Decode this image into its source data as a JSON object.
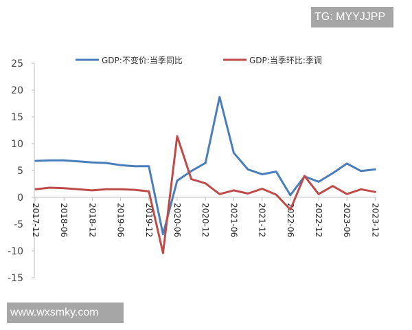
{
  "watermarks": {
    "top_right": "TG: MYYJJPP",
    "bottom_left": "www.wxsmky.com"
  },
  "colors": {
    "series_yoy": "#4a7ebb",
    "series_qoq": "#be4b48",
    "axis": "#bfbfbf",
    "watermark_bg": "#a6a6a6"
  },
  "chart_data": {
    "type": "line",
    "title": "",
    "xlabel": "",
    "ylabel": "",
    "ylim": [
      -15,
      25
    ],
    "yticks": [
      25,
      20,
      15,
      10,
      5,
      0,
      -5,
      -10,
      -15
    ],
    "grid": false,
    "legend_position": "top",
    "x": [
      "2017-12",
      "2018-03",
      "2018-06",
      "2018-09",
      "2018-12",
      "2019-03",
      "2019-06",
      "2019-09",
      "2019-12",
      "2020-03",
      "2020-06",
      "2020-09",
      "2020-12",
      "2021-03",
      "2021-06",
      "2021-09",
      "2021-12",
      "2022-03",
      "2022-06",
      "2022-09",
      "2022-12",
      "2023-03",
      "2023-06",
      "2023-09",
      "2023-12"
    ],
    "xtick_labels": [
      "2017-12",
      "2018-06",
      "2018-12",
      "2019-06",
      "2019-12",
      "2020-06",
      "2020-12",
      "2021-06",
      "2021-12",
      "2022-06",
      "2022-12",
      "2023-06",
      "2023-12"
    ],
    "series": [
      {
        "name": "GDP:不变价:当季同比",
        "color": "#4a7ebb",
        "values": [
          6.8,
          6.9,
          6.9,
          6.7,
          6.5,
          6.4,
          6.0,
          5.8,
          5.8,
          -6.9,
          3.1,
          4.9,
          6.4,
          18.7,
          8.3,
          5.2,
          4.3,
          4.8,
          0.4,
          3.9,
          2.9,
          4.5,
          6.3,
          4.9,
          5.2
        ]
      },
      {
        "name": "GDP:当季环比:季调",
        "color": "#be4b48",
        "values": [
          1.5,
          1.8,
          1.7,
          1.5,
          1.3,
          1.5,
          1.5,
          1.4,
          1.1,
          -10.4,
          11.4,
          3.4,
          2.6,
          0.6,
          1.3,
          0.7,
          1.6,
          0.5,
          -2.3,
          4.0,
          0.6,
          2.1,
          0.6,
          1.5,
          1.0
        ]
      }
    ]
  }
}
